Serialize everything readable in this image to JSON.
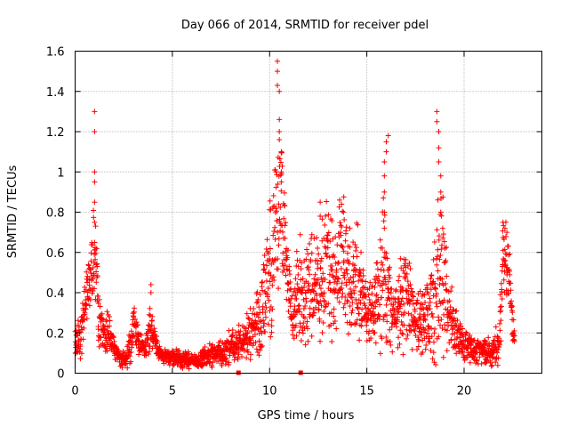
{
  "chart_data": {
    "type": "scatter",
    "title": "Day 066 of 2014, SRMTID for receiver pdel",
    "xlabel": "GPS time / hours",
    "ylabel": "SRMTID / TECUs",
    "xlim": [
      0,
      24
    ],
    "ylim": [
      0,
      1.6
    ],
    "xticks": [
      0,
      5,
      10,
      15,
      20
    ],
    "xtick_labels": [
      "0",
      "5",
      "10",
      "15",
      "20"
    ],
    "yticks": [
      0,
      0.2,
      0.4,
      0.6,
      0.8,
      1.0,
      1.2,
      1.4,
      1.6
    ],
    "ytick_labels": [
      "0",
      "0.2",
      "0.4",
      "0.6",
      "0.8",
      "1",
      "1.2",
      "1.4",
      "1.6"
    ],
    "grid": true,
    "marker": "+",
    "series_color": "#ff0000",
    "series": [
      {
        "name": "SRMTID",
        "anchors_x": [
          0.0,
          0.3,
          0.6,
          0.8,
          0.9,
          1.0,
          1.1,
          1.2,
          1.5,
          1.8,
          2.0,
          2.3,
          2.6,
          2.9,
          3.0,
          3.1,
          3.3,
          3.6,
          3.8,
          3.9,
          4.0,
          4.2,
          4.5,
          5.0,
          5.5,
          6.0,
          6.5,
          7.0,
          7.5,
          8.0,
          8.5,
          9.0,
          9.3,
          9.6,
          9.9,
          10.1,
          10.3,
          10.5,
          10.6,
          10.8,
          11.0,
          11.2,
          11.5,
          11.8,
          12.0,
          12.2,
          12.5,
          12.8,
          13.0,
          13.3,
          13.6,
          13.9,
          14.2,
          14.5,
          14.8,
          15.0,
          15.3,
          15.6,
          15.8,
          16.0,
          16.2,
          16.5,
          16.8,
          17.0,
          17.3,
          17.6,
          18.0,
          18.3,
          18.6,
          18.8,
          19.0,
          19.2,
          19.5,
          19.8,
          20.0,
          20.3,
          20.6,
          21.0,
          21.4,
          21.8,
          22.0,
          22.2,
          22.4,
          22.6
        ],
        "anchors_center": [
          0.15,
          0.2,
          0.35,
          0.5,
          0.55,
          0.6,
          0.55,
          0.25,
          0.2,
          0.2,
          0.12,
          0.08,
          0.06,
          0.15,
          0.3,
          0.22,
          0.14,
          0.12,
          0.18,
          0.25,
          0.18,
          0.12,
          0.09,
          0.08,
          0.07,
          0.06,
          0.07,
          0.09,
          0.1,
          0.13,
          0.15,
          0.2,
          0.26,
          0.3,
          0.45,
          0.55,
          0.7,
          0.78,
          0.8,
          0.6,
          0.4,
          0.3,
          0.45,
          0.35,
          0.4,
          0.45,
          0.4,
          0.5,
          0.55,
          0.45,
          0.6,
          0.55,
          0.4,
          0.45,
          0.35,
          0.28,
          0.3,
          0.35,
          0.5,
          0.45,
          0.3,
          0.25,
          0.35,
          0.45,
          0.3,
          0.25,
          0.25,
          0.3,
          0.4,
          0.5,
          0.45,
          0.3,
          0.2,
          0.18,
          0.14,
          0.12,
          0.1,
          0.12,
          0.1,
          0.15,
          0.55,
          0.6,
          0.35,
          0.15
        ],
        "anchors_spread": [
          0.06,
          0.08,
          0.12,
          0.12,
          0.2,
          0.25,
          0.15,
          0.1,
          0.08,
          0.06,
          0.04,
          0.03,
          0.03,
          0.08,
          0.08,
          0.06,
          0.04,
          0.04,
          0.1,
          0.1,
          0.06,
          0.04,
          0.03,
          0.03,
          0.03,
          0.03,
          0.03,
          0.04,
          0.04,
          0.06,
          0.06,
          0.1,
          0.12,
          0.15,
          0.2,
          0.3,
          0.3,
          0.25,
          0.25,
          0.2,
          0.15,
          0.12,
          0.2,
          0.15,
          0.2,
          0.2,
          0.2,
          0.22,
          0.25,
          0.2,
          0.22,
          0.22,
          0.2,
          0.2,
          0.15,
          0.12,
          0.12,
          0.15,
          0.35,
          0.3,
          0.15,
          0.12,
          0.2,
          0.2,
          0.15,
          0.12,
          0.12,
          0.15,
          0.3,
          0.35,
          0.25,
          0.15,
          0.1,
          0.08,
          0.06,
          0.05,
          0.05,
          0.05,
          0.05,
          0.08,
          0.15,
          0.15,
          0.12,
          0.05
        ],
        "spikes": [
          [
            1.0,
            1.3
          ],
          [
            1.0,
            1.2
          ],
          [
            1.0,
            1.0
          ],
          [
            1.0,
            0.95
          ],
          [
            1.0,
            0.85
          ],
          [
            1.0,
            0.75
          ],
          [
            1.0,
            0.65
          ],
          [
            3.9,
            0.44
          ],
          [
            3.9,
            0.4
          ],
          [
            10.4,
            1.55
          ],
          [
            10.4,
            1.5
          ],
          [
            10.4,
            1.43
          ],
          [
            10.5,
            1.4
          ],
          [
            10.5,
            1.26
          ],
          [
            10.5,
            1.2
          ],
          [
            10.5,
            1.16
          ],
          [
            10.6,
            1.1
          ],
          [
            10.6,
            1.0
          ],
          [
            10.6,
            0.95
          ],
          [
            12.6,
            0.85
          ],
          [
            12.6,
            0.78
          ],
          [
            13.6,
            0.86
          ],
          [
            13.7,
            0.84
          ],
          [
            13.8,
            0.8
          ],
          [
            16.1,
            1.18
          ],
          [
            16.0,
            1.15
          ],
          [
            16.0,
            1.1
          ],
          [
            15.9,
            1.05
          ],
          [
            15.9,
            0.98
          ],
          [
            15.9,
            0.9
          ],
          [
            15.9,
            0.8
          ],
          [
            15.9,
            0.72
          ],
          [
            18.6,
            1.3
          ],
          [
            18.6,
            1.25
          ],
          [
            18.7,
            1.2
          ],
          [
            18.7,
            1.12
          ],
          [
            18.7,
            1.05
          ],
          [
            18.8,
            0.98
          ],
          [
            18.8,
            0.9
          ],
          [
            18.8,
            0.8
          ],
          [
            18.9,
            0.72
          ],
          [
            22.0,
            0.75
          ],
          [
            22.1,
            0.72
          ],
          [
            22.2,
            0.7
          ]
        ],
        "outliers": [
          [
            8.4,
            0.0
          ],
          [
            11.6,
            0.0
          ]
        ]
      }
    ]
  }
}
